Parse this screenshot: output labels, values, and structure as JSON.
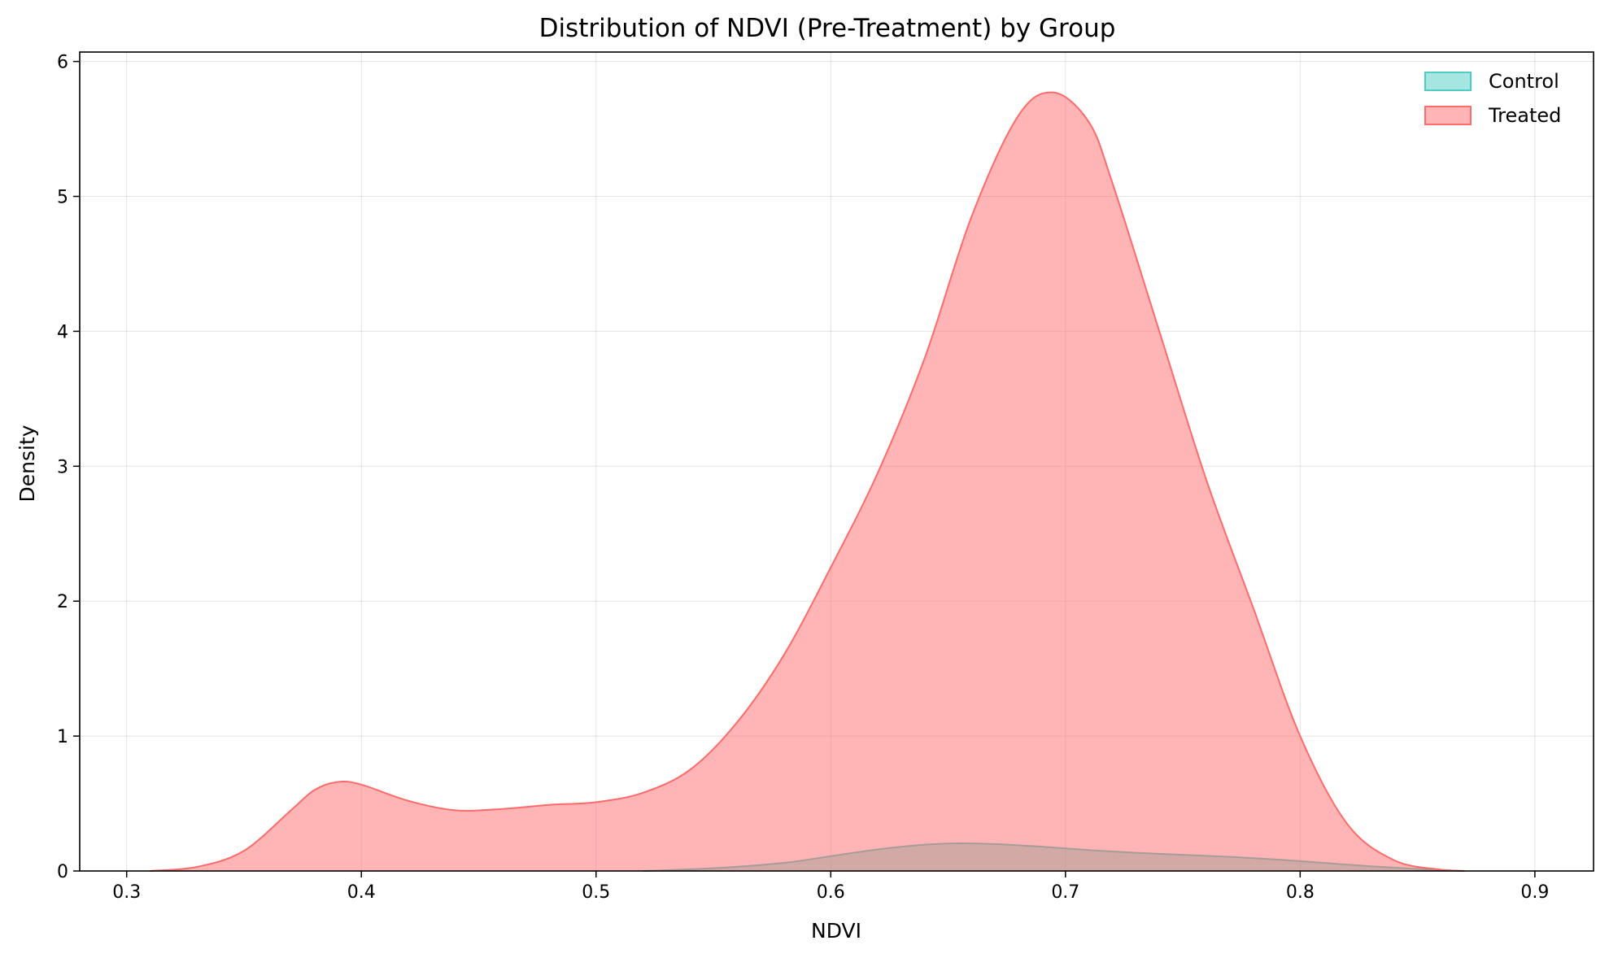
{
  "chart_data": {
    "type": "area",
    "title": "Distribution of NDVI (Pre-Treatment) by Group",
    "xlabel": "NDVI",
    "ylabel": "Density",
    "xlim": [
      0.28,
      0.925
    ],
    "ylim": [
      0,
      6.07
    ],
    "xticks": [
      0.3,
      0.4,
      0.5,
      0.6,
      0.7,
      0.8,
      0.9
    ],
    "yticks": [
      0,
      1,
      2,
      3,
      4,
      5,
      6
    ],
    "grid": true,
    "legend_position": "top-right",
    "series": [
      {
        "name": "Control",
        "color": "#4ecdc4",
        "x": [
          0.52,
          0.55,
          0.58,
          0.6,
          0.62,
          0.64,
          0.655,
          0.67,
          0.69,
          0.71,
          0.73,
          0.75,
          0.77,
          0.79,
          0.81,
          0.83,
          0.85,
          0.87
        ],
        "y": [
          0.0,
          0.02,
          0.06,
          0.11,
          0.16,
          0.195,
          0.205,
          0.2,
          0.18,
          0.155,
          0.135,
          0.12,
          0.105,
          0.085,
          0.06,
          0.035,
          0.015,
          0.0
        ]
      },
      {
        "name": "Treated",
        "color": "#ff6b6b",
        "x": [
          0.31,
          0.33,
          0.35,
          0.37,
          0.38,
          0.39,
          0.4,
          0.42,
          0.44,
          0.46,
          0.48,
          0.5,
          0.52,
          0.54,
          0.56,
          0.58,
          0.6,
          0.62,
          0.64,
          0.66,
          0.68,
          0.695,
          0.71,
          0.72,
          0.74,
          0.76,
          0.78,
          0.8,
          0.82,
          0.84,
          0.86,
          0.87
        ],
        "y": [
          0.0,
          0.03,
          0.15,
          0.45,
          0.6,
          0.66,
          0.64,
          0.52,
          0.45,
          0.46,
          0.49,
          0.51,
          0.58,
          0.75,
          1.1,
          1.6,
          2.25,
          2.95,
          3.8,
          4.85,
          5.6,
          5.77,
          5.55,
          5.1,
          4.0,
          2.9,
          1.95,
          1.0,
          0.35,
          0.08,
          0.01,
          0.0
        ]
      }
    ]
  }
}
